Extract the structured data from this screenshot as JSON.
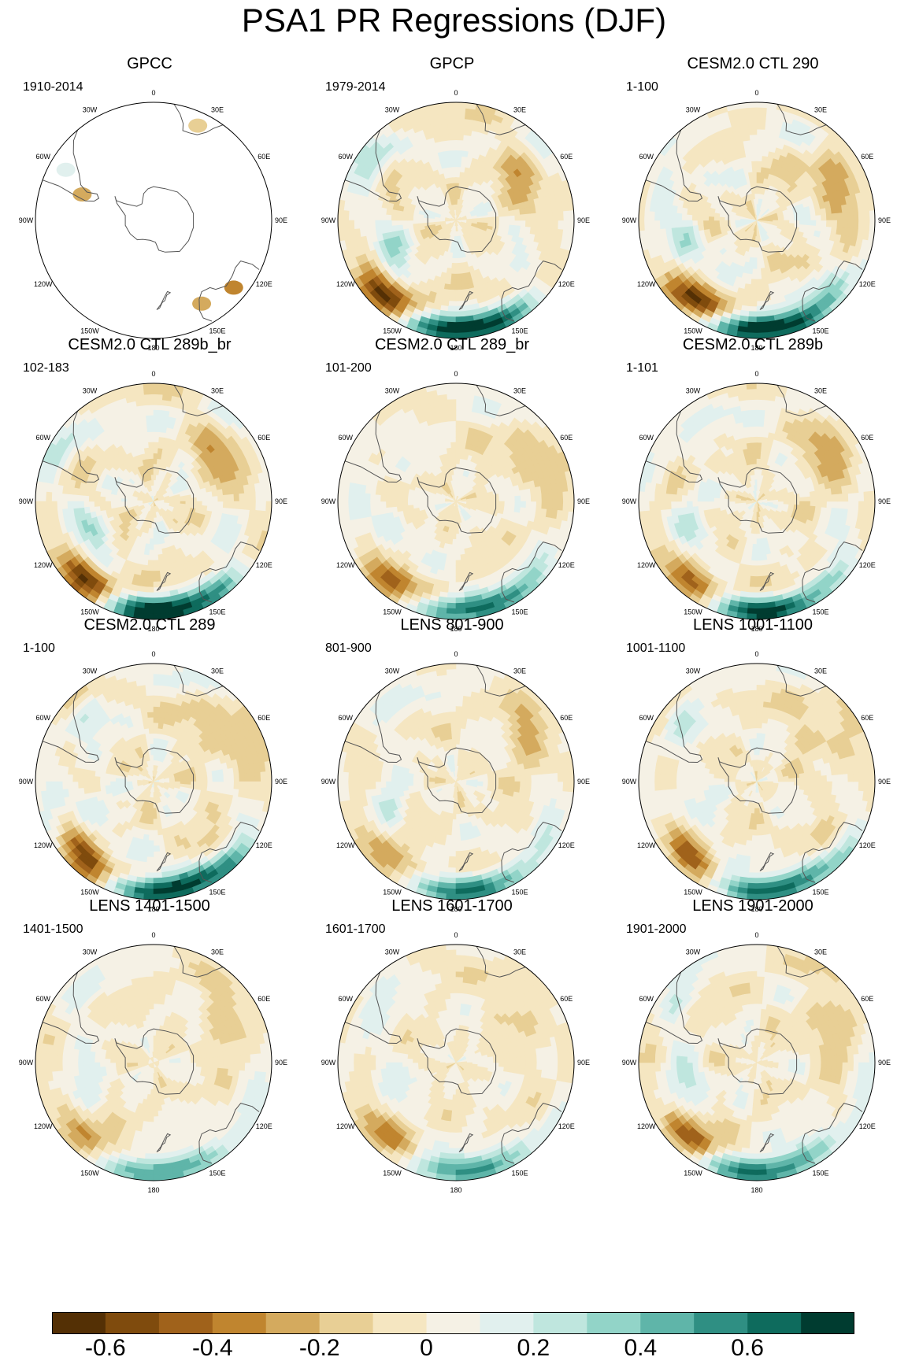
{
  "title": "PSA1 PR Regressions (DJF)",
  "longitude_labels": [
    "0",
    "30E",
    "60E",
    "90E",
    "120E",
    "150E",
    "180",
    "150W",
    "120W",
    "90W",
    "60W",
    "30W"
  ],
  "panels": [
    {
      "title": "GPCC",
      "period": "1910-2014",
      "type": "land_only"
    },
    {
      "title": "GPCP",
      "period": "1979-2014",
      "type": "field",
      "strength": 1.0
    },
    {
      "title": "CESM2.0 CTL 290",
      "period": "1-100",
      "type": "field",
      "strength": 1.1
    },
    {
      "title": "CESM2.0 CTL 289b_br",
      "period": "102-183",
      "type": "field",
      "strength": 1.05
    },
    {
      "title": "CESM2.0 CTL 289_br",
      "period": "101-200",
      "type": "field",
      "strength": 0.85
    },
    {
      "title": "CESM2.0 CTL 289b",
      "period": "1-101",
      "type": "field",
      "strength": 0.95
    },
    {
      "title": "CESM2.0 CTL 289",
      "period": "1-100",
      "type": "field",
      "strength": 1.1
    },
    {
      "title": "LENS 801-900",
      "period": "801-900",
      "type": "field",
      "strength": 0.85
    },
    {
      "title": "LENS 1001-1100",
      "period": "1001-1100",
      "type": "field",
      "strength": 0.9
    },
    {
      "title": "LENS 1401-1500",
      "period": "1401-1500",
      "type": "field",
      "strength": 0.75
    },
    {
      "title": "LENS 1601-1700",
      "period": "1601-1700",
      "type": "field",
      "strength": 0.7
    },
    {
      "title": "LENS 1901-2000",
      "period": "1901-2000",
      "type": "field",
      "strength": 0.9
    }
  ],
  "colorbar": {
    "colors": [
      "#543005",
      "#7f4b0d",
      "#a0621b",
      "#c0852f",
      "#d4aa5e",
      "#e8cf95",
      "#f5e6c1",
      "#f5f1e5",
      "#e1f0ee",
      "#bfe6de",
      "#92d4c8",
      "#5fb5a9",
      "#2f8f83",
      "#0e6b5d",
      "#003c30"
    ],
    "tick_labels": [
      "-0.6",
      "-0.4",
      "-0.2",
      "0",
      "0.2",
      "0.4",
      "0.6"
    ],
    "tick_values": [
      -0.6,
      -0.4,
      -0.2,
      0,
      0.2,
      0.4,
      0.6
    ],
    "range": [
      -0.7,
      0.8
    ]
  }
}
